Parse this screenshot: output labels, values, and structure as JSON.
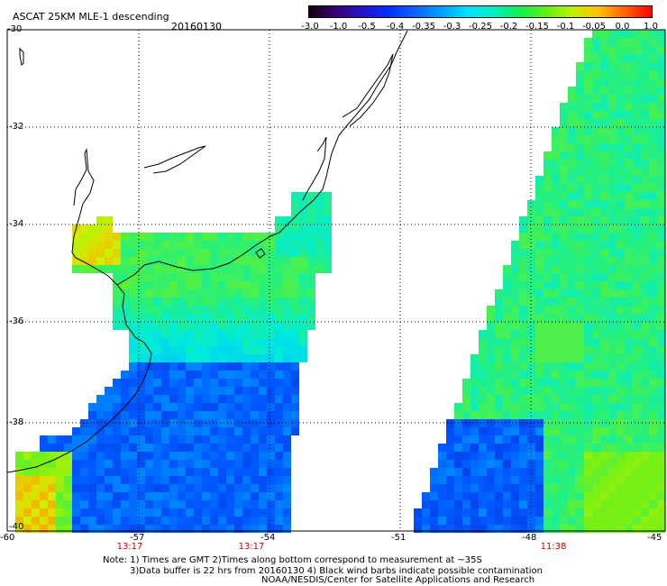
{
  "header": {
    "title": "ASCAT 25KM MLE-1 descending",
    "date": "20160130"
  },
  "colorbar": {
    "labels": [
      "-3.0",
      "-1.0",
      "-0.5",
      "-0.4",
      "-0.35",
      "-0.3",
      "-0.25",
      "-0.2",
      "-0.15",
      "-0.1",
      "-0.05",
      "0.0",
      "1.0"
    ],
    "colors": [
      "#140010",
      "#3a0070",
      "#2a10c8",
      "#0030ff",
      "#1060ff",
      "#00a0ff",
      "#00e0ff",
      "#00f0c0",
      "#10f050",
      "#60f010",
      "#c0f000",
      "#ffc000",
      "#ff6000",
      "#ff0000"
    ]
  },
  "axes": {
    "lat_labels": [
      "-30",
      "-32",
      "-34",
      "-36",
      "-38",
      "-40"
    ],
    "lon_labels": [
      "-60",
      "-57",
      "-54",
      "-51",
      "-48",
      "-45"
    ]
  },
  "times": [
    {
      "label": "13:17",
      "lon": "-57"
    },
    {
      "label": "13:17",
      "lon": "-54"
    },
    {
      "label": "11:38",
      "lon": "-48"
    }
  ],
  "notes": [
    "Note: 1) Times are GMT 2)Times along bottom correspond to measurement at ~35S",
    "3)Data buffer is 22 hrs from 20160130 4) Black wind barbs indicate possible contamination",
    "NOAA/NESDIS/Center for Satellite Applications and Research"
  ],
  "colors": {
    "coast": "#000000",
    "grid": "#000000",
    "time_text": "#cc0000"
  }
}
